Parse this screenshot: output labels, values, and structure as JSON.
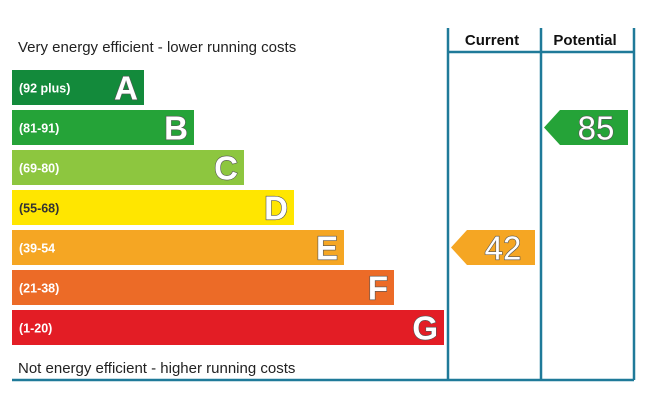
{
  "chart_data": {
    "type": "bar",
    "top_label": "Very energy efficient - lower running costs",
    "bottom_label": "Not energy efficient - higher running costs",
    "column_headers": [
      "Current",
      "Potential"
    ],
    "bands": [
      {
        "range": "(92 plus)",
        "letter": "A",
        "color": "#138a3b"
      },
      {
        "range": "(81-91)",
        "letter": "B",
        "color": "#25a338"
      },
      {
        "range": "(69-80)",
        "letter": "C",
        "color": "#8dc63f"
      },
      {
        "range": "(55-68)",
        "letter": "D",
        "color": "#ffe600"
      },
      {
        "range": "(39-54",
        "letter": "E",
        "color": "#f5a623"
      },
      {
        "range": "(21-38)",
        "letter": "F",
        "color": "#ec6b27"
      },
      {
        "range": "(1-20)",
        "letter": "G",
        "color": "#e31d25"
      }
    ],
    "current": {
      "value": "42",
      "band": "E",
      "color": "#f5a623"
    },
    "potential": {
      "value": "85",
      "band": "B",
      "color": "#25a338"
    },
    "frame_color": "#1f7a99"
  }
}
